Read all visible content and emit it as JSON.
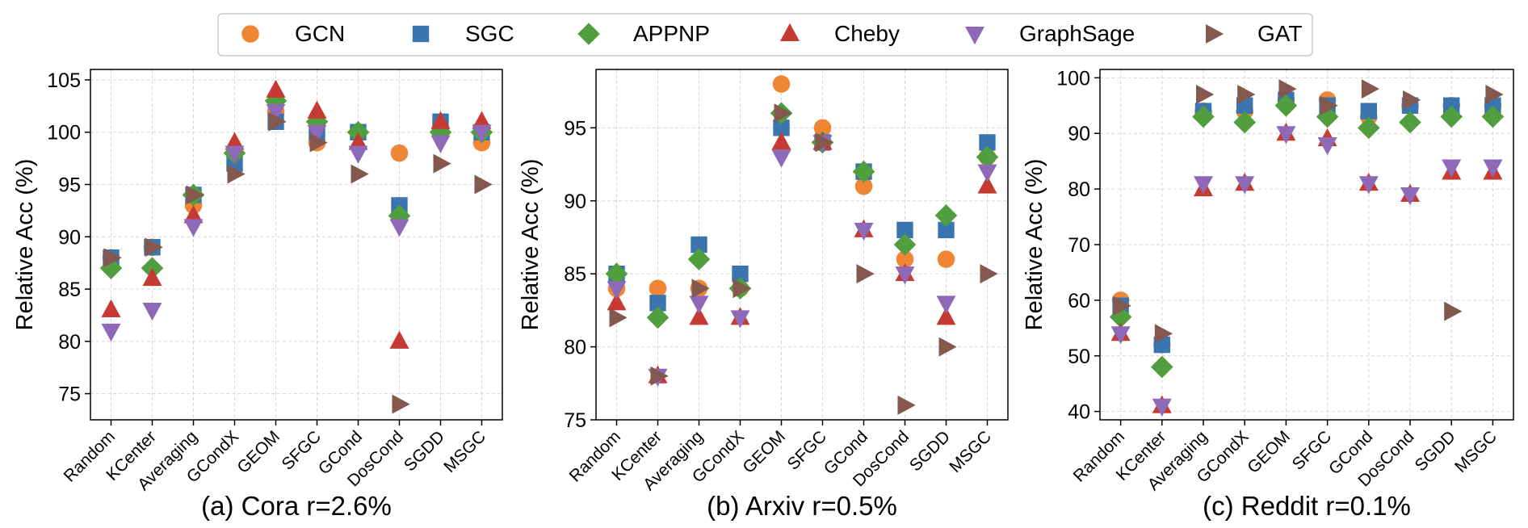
{
  "colors": {
    "GCN": "#EE8636",
    "SGC": "#3A75B0",
    "APPNP": "#519E3E",
    "Cheby": "#C53A32",
    "GraphSage": "#8D69B8",
    "GAT": "#84584E"
  },
  "legend": {
    "placement": "top-center",
    "entries": [
      {
        "name": "GCN",
        "marker": "circle"
      },
      {
        "name": "SGC",
        "marker": "square"
      },
      {
        "name": "APPNP",
        "marker": "diamond"
      },
      {
        "name": "Cheby",
        "marker": "triangle-up"
      },
      {
        "name": "GraphSage",
        "marker": "triangle-down"
      },
      {
        "name": "GAT",
        "marker": "triangle-right"
      }
    ]
  },
  "chart_data": [
    {
      "type": "scatter",
      "title": "(a) Cora r=2.6%",
      "xlabel": "",
      "ylabel": "Relative Acc (%)",
      "grid": true,
      "ylim": [
        72.5,
        106
      ],
      "yticks": [
        75,
        80,
        85,
        90,
        95,
        100,
        105
      ],
      "categories": [
        "Random",
        "KCenter",
        "Averaging",
        "GCondX",
        "GEOM",
        "SFGC",
        "GCond",
        "DosCond",
        "SGDD",
        "MSGC"
      ],
      "series": [
        {
          "name": "GCN",
          "values": [
            88,
            89,
            93,
            98,
            102,
            99,
            100,
            98,
            100,
            99
          ]
        },
        {
          "name": "SGC",
          "values": [
            88,
            89,
            94,
            97,
            101,
            100,
            100,
            93,
            101,
            100
          ]
        },
        {
          "name": "APPNP",
          "values": [
            87,
            87,
            94,
            98,
            103,
            101,
            100,
            92,
            100,
            100
          ]
        },
        {
          "name": "Cheby",
          "values": [
            83,
            86,
            92,
            99,
            104,
            102,
            99,
            80,
            101,
            101
          ]
        },
        {
          "name": "GraphSage",
          "values": [
            81,
            83,
            91,
            98,
            102,
            100,
            98,
            91,
            99,
            100
          ]
        },
        {
          "name": "GAT",
          "values": [
            88,
            89,
            94,
            96,
            101,
            99,
            96,
            74,
            97,
            95
          ]
        }
      ]
    },
    {
      "type": "scatter",
      "title": "(b) Arxiv r=0.5%",
      "xlabel": "",
      "ylabel": "Relative Acc (%)",
      "grid": true,
      "ylim": [
        75,
        99
      ],
      "yticks": [
        75,
        80,
        85,
        90,
        95
      ],
      "categories": [
        "Random",
        "KCenter",
        "Averaging",
        "GCondX",
        "GEOM",
        "SFGC",
        "GCond",
        "DosCond",
        "SGDD",
        "MSGC"
      ],
      "series": [
        {
          "name": "GCN",
          "values": [
            84,
            84,
            84,
            84,
            98,
            95,
            91,
            86,
            86,
            93
          ]
        },
        {
          "name": "SGC",
          "values": [
            85,
            83,
            87,
            85,
            95,
            94,
            92,
            88,
            88,
            94
          ]
        },
        {
          "name": "APPNP",
          "values": [
            85,
            82,
            86,
            84,
            96,
            94,
            92,
            87,
            89,
            93
          ]
        },
        {
          "name": "Cheby",
          "values": [
            83,
            78,
            82,
            82,
            94,
            94,
            88,
            85,
            82,
            91
          ]
        },
        {
          "name": "GraphSage",
          "values": [
            84,
            78,
            83,
            82,
            93,
            94,
            88,
            85,
            83,
            92
          ]
        },
        {
          "name": "GAT",
          "values": [
            82,
            78,
            84,
            84,
            96,
            94,
            85,
            76,
            80,
            85
          ]
        }
      ]
    },
    {
      "type": "scatter",
      "title": "(c) Reddit r=0.1%",
      "xlabel": "",
      "ylabel": "Relative Acc (%)",
      "grid": true,
      "ylim": [
        38.5,
        101.5
      ],
      "yticks": [
        40,
        50,
        60,
        70,
        80,
        90,
        100
      ],
      "categories": [
        "Random",
        "KCenter",
        "Averaging",
        "GCondX",
        "GEOM",
        "SFGC",
        "GCond",
        "DosCond",
        "SGDD",
        "MSGC"
      ],
      "series": [
        {
          "name": "GCN",
          "values": [
            60,
            52,
            94,
            94,
            96,
            96,
            93,
            95,
            95,
            95
          ]
        },
        {
          "name": "SGC",
          "values": [
            59,
            52,
            94,
            95,
            96,
            95,
            94,
            95,
            95,
            95
          ]
        },
        {
          "name": "APPNP",
          "values": [
            57,
            48,
            93,
            92,
            95,
            93,
            91,
            92,
            93,
            93
          ]
        },
        {
          "name": "Cheby",
          "values": [
            54,
            41,
            80,
            81,
            90,
            89,
            81,
            79,
            83,
            83
          ]
        },
        {
          "name": "GraphSage",
          "values": [
            54,
            41,
            81,
            81,
            90,
            88,
            81,
            79,
            84,
            84
          ]
        },
        {
          "name": "GAT",
          "values": [
            59,
            54,
            97,
            97,
            98,
            95,
            98,
            96,
            58,
            97
          ]
        }
      ]
    }
  ]
}
